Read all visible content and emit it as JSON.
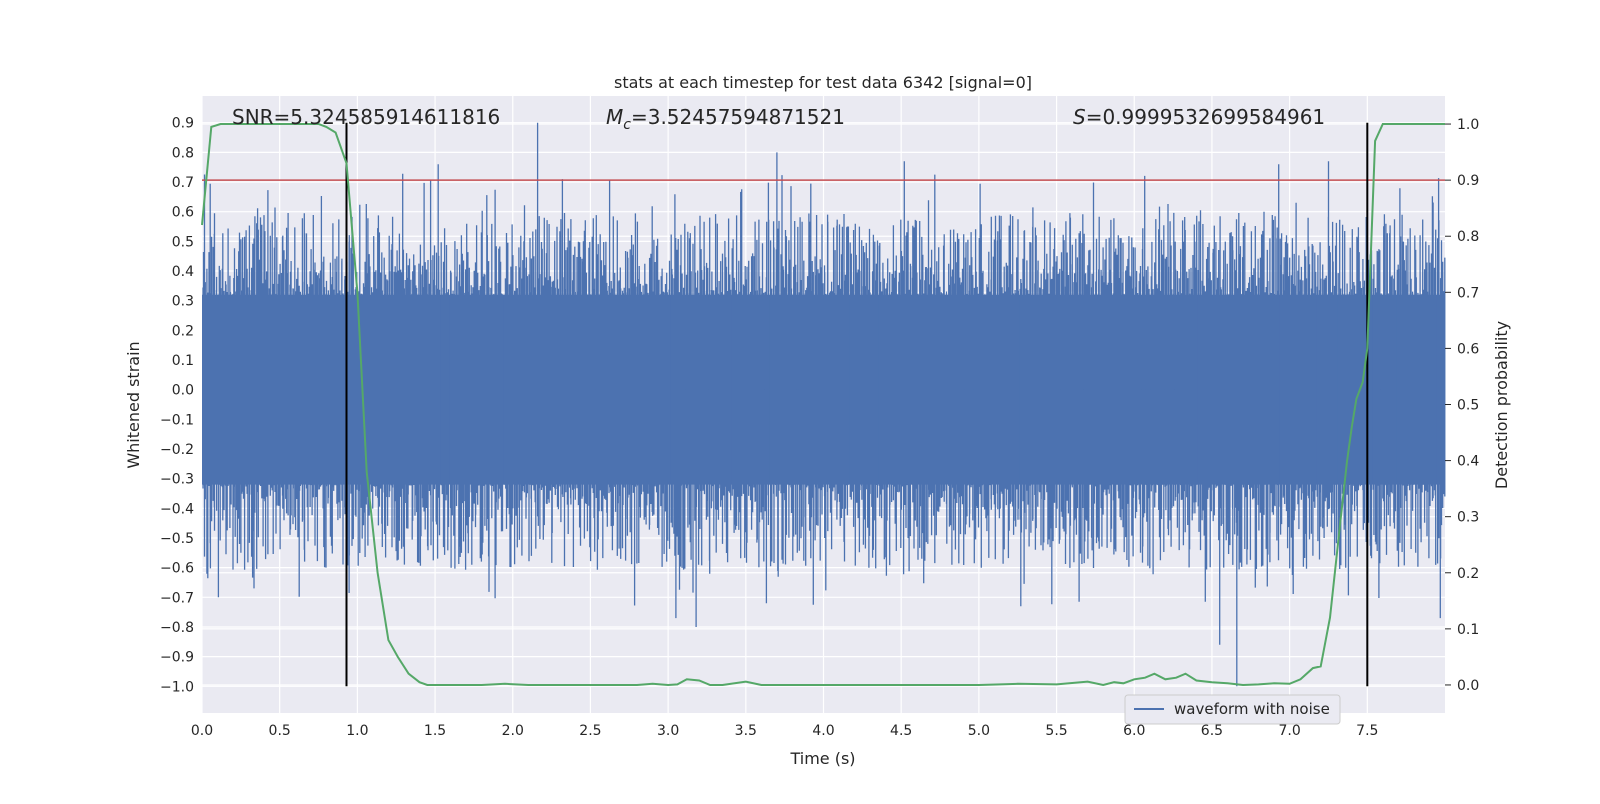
{
  "chart_data": {
    "type": "line",
    "title": "stats at each timestep for test data 6342 [signal=0]",
    "xlabel": "Time (s)",
    "ylabel_left": "Whitened strain",
    "ylabel_right": "Detection probability",
    "xlim": [
      0.0,
      8.0
    ],
    "ylim_left": [
      -1.09,
      0.99
    ],
    "ylim_right": [
      -0.05,
      1.05
    ],
    "x_ticks": [
      "0.0",
      "0.5",
      "1.0",
      "1.5",
      "2.0",
      "2.5",
      "3.0",
      "3.5",
      "4.0",
      "4.5",
      "5.0",
      "5.5",
      "6.0",
      "6.5",
      "7.0",
      "7.5"
    ],
    "y_left_ticks": [
      "0.9",
      "0.8",
      "0.7",
      "0.6",
      "0.5",
      "0.4",
      "0.3",
      "0.2",
      "0.1",
      "0.0",
      "−0.1",
      "−0.2",
      "−0.3",
      "−0.4",
      "−0.5",
      "−0.6",
      "−0.7",
      "−0.8",
      "−0.9",
      "−1.0"
    ],
    "y_right_ticks": [
      "1.0",
      "0.9",
      "0.8",
      "0.7",
      "0.6",
      "0.5",
      "0.4",
      "0.3",
      "0.2",
      "0.1",
      "0.0"
    ],
    "annotations": {
      "snr": "SNR=5.324585914611816",
      "mc_symbol": "M",
      "mc_sub": "c",
      "mc_value": "=3.52457594871521",
      "s_symbol": "S",
      "s_value": "=0.9999532699584961"
    },
    "threshold_line": {
      "axis": "right",
      "value": 0.9,
      "color": "#c44e52"
    },
    "vertical_markers": [
      0.93,
      7.5
    ],
    "vertical_marker_range_left": [
      -1.0,
      0.9
    ],
    "series": [
      {
        "name": "waveform with noise",
        "axis": "left",
        "color": "#4c72b0",
        "description_stats": {
          "core_amplitude": 0.32,
          "typical_peak": 0.55,
          "max": 0.9,
          "min": -1.0
        },
        "notable_peaks": [
          {
            "x": 2.16,
            "y": 0.9
          },
          {
            "x": 3.7,
            "y": 0.8
          },
          {
            "x": 1.52,
            "y": 0.76
          },
          {
            "x": 4.52,
            "y": 0.77
          },
          {
            "x": 6.93,
            "y": 0.76
          },
          {
            "x": 7.25,
            "y": 0.77
          },
          {
            "x": 6.66,
            "y": -1.0
          },
          {
            "x": 3.18,
            "y": -0.8
          },
          {
            "x": 3.05,
            "y": -0.77
          },
          {
            "x": 6.55,
            "y": -0.86
          },
          {
            "x": 5.27,
            "y": -0.73
          },
          {
            "x": 7.97,
            "y": -0.77
          }
        ]
      },
      {
        "name": "detection probability",
        "axis": "right",
        "color": "#55a868",
        "x": [
          0.0,
          0.06,
          0.12,
          0.2,
          0.4,
          0.6,
          0.75,
          0.8,
          0.86,
          0.93,
          1.0,
          1.06,
          1.13,
          1.2,
          1.26,
          1.33,
          1.4,
          1.45,
          1.5,
          1.57,
          1.8,
          1.95,
          2.1,
          2.5,
          2.8,
          2.9,
          3.0,
          3.06,
          3.12,
          3.2,
          3.27,
          3.35,
          3.5,
          3.6,
          4.0,
          4.5,
          5.0,
          5.25,
          5.5,
          5.7,
          5.8,
          5.87,
          5.93,
          6.0,
          6.07,
          6.13,
          6.2,
          6.27,
          6.33,
          6.4,
          6.5,
          6.6,
          6.7,
          6.8,
          6.9,
          7.0,
          7.07,
          7.15,
          7.2,
          7.26,
          7.33,
          7.37,
          7.4,
          7.43,
          7.47,
          7.5,
          7.55,
          7.6,
          7.8,
          8.0
        ],
        "y": [
          0.82,
          0.995,
          1.0,
          1.0,
          1.0,
          1.0,
          1.0,
          0.995,
          0.985,
          0.93,
          0.7,
          0.38,
          0.2,
          0.08,
          0.05,
          0.02,
          0.005,
          0.0,
          0.0,
          0.0,
          0.0,
          0.002,
          0.0,
          0.0,
          0.0,
          0.002,
          0.0,
          0.001,
          0.01,
          0.008,
          0.0,
          0.0,
          0.006,
          0.0,
          0.0,
          0.0,
          0.0,
          0.002,
          0.001,
          0.006,
          0.0,
          0.005,
          0.003,
          0.01,
          0.013,
          0.02,
          0.01,
          0.013,
          0.02,
          0.008,
          0.005,
          0.003,
          0.0,
          0.001,
          0.003,
          0.002,
          0.01,
          0.03,
          0.033,
          0.12,
          0.3,
          0.4,
          0.46,
          0.51,
          0.54,
          0.6,
          0.97,
          1.0,
          1.0,
          1.0
        ]
      }
    ],
    "legend": {
      "placement": "lower-right",
      "entries": [
        "waveform with noise"
      ]
    },
    "grid": true,
    "colors": {
      "plot_background": "#eaeaf2",
      "grid": "#ffffff",
      "wave": "#4c72b0",
      "prob": "#55a868",
      "threshold": "#c44e52",
      "marker": "#000000"
    }
  }
}
